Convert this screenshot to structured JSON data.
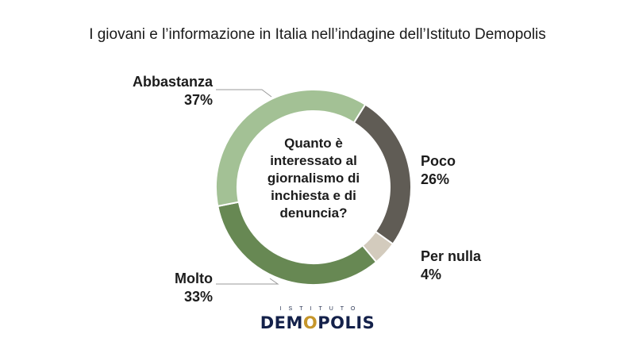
{
  "title": "I giovani e l’informazione in Italia nell’indagine dell’Istituto Demopolis",
  "center_question": [
    "Quanto è",
    "interessato al",
    "giornalismo di",
    "inchiesta e di",
    "denuncia?"
  ],
  "chart_data": {
    "type": "pie",
    "title": "I giovani e l’informazione in Italia nell’indagine dell’Istituto Demopolis",
    "slices": [
      {
        "label": "Poco",
        "value": 26,
        "display": "26%",
        "color": "#605c55"
      },
      {
        "label": "Per nulla",
        "value": 4,
        "display": "4%",
        "color": "#d3cbbd"
      },
      {
        "label": "Molto",
        "value": 33,
        "display": "33%",
        "color": "#678853"
      },
      {
        "label": "Abbastanza",
        "value": 37,
        "display": "37%",
        "color": "#a3c195"
      }
    ]
  },
  "logo": {
    "top_text": "ISTITUTO",
    "main_before": "DEM",
    "main_o": "O",
    "main_after": "POLIS"
  }
}
